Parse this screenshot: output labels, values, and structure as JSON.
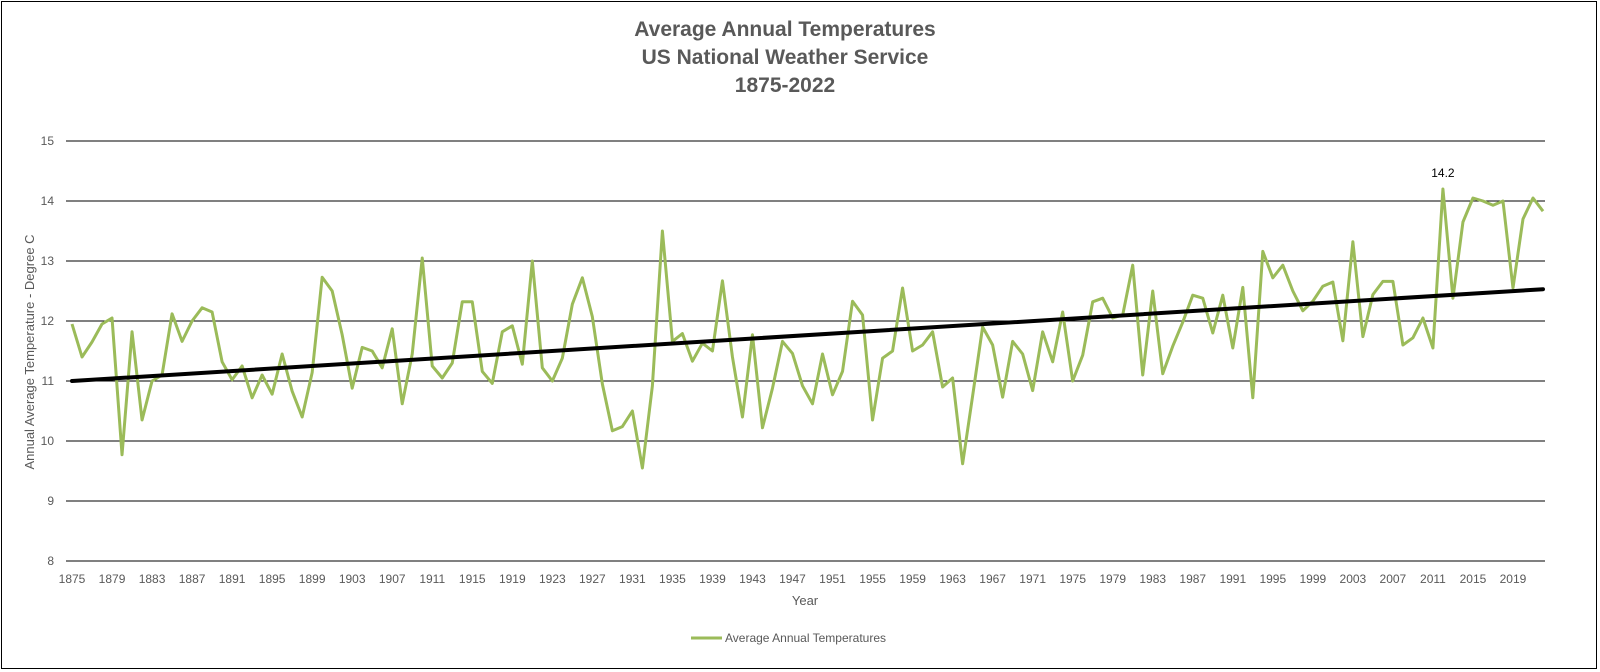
{
  "chart_data": {
    "type": "line",
    "title": [
      "Average Annual Temperatures",
      "US National Weather Service",
      "1875-2022"
    ],
    "xlabel": "Year",
    "ylabel": "Annual Average Temperature - Degree C",
    "ylim": [
      8,
      15
    ],
    "yticks": [
      8,
      9,
      10,
      11,
      12,
      13,
      14,
      15
    ],
    "xtick_labels": [
      "1875",
      "1879",
      "1883",
      "1887",
      "1891",
      "1895",
      "1899",
      "1903",
      "1907",
      "1911",
      "1915",
      "1919",
      "1923",
      "1927",
      "1931",
      "1935",
      "1939",
      "1943",
      "1947",
      "1951",
      "1955",
      "1959",
      "1963",
      "1967",
      "1971",
      "1975",
      "1979",
      "1983",
      "1987",
      "1991",
      "1995",
      "1999",
      "2003",
      "2007",
      "2011",
      "2015",
      "2019"
    ],
    "grid": "horizontal",
    "legend": "bottom",
    "colors": {
      "series": "#9BBB59",
      "trend": "#000000",
      "grid": "#000000",
      "text": "#595959"
    },
    "x_start": 1875,
    "series": [
      {
        "name": "Average Annual Temperatures",
        "values": [
          11.95,
          11.4,
          11.65,
          11.95,
          12.05,
          9.77,
          11.82,
          10.35,
          11.0,
          11.1,
          12.12,
          11.66,
          12.0,
          12.22,
          12.15,
          11.32,
          11.02,
          11.25,
          10.72,
          11.1,
          10.78,
          11.45,
          10.83,
          10.4,
          11.14,
          12.73,
          12.5,
          11.77,
          10.88,
          11.56,
          11.5,
          11.22,
          11.87,
          10.62,
          11.45,
          13.05,
          11.25,
          11.05,
          11.3,
          12.32,
          12.32,
          11.16,
          10.96,
          11.82,
          11.92,
          11.28,
          13.0,
          11.22,
          11.0,
          11.38,
          12.28,
          12.72,
          12.07,
          10.95,
          10.17,
          10.24,
          10.5,
          9.55,
          10.92,
          13.5,
          11.66,
          11.79,
          11.33,
          11.63,
          11.5,
          12.67,
          11.4,
          10.4,
          11.77,
          10.22,
          10.88,
          11.66,
          11.46,
          10.92,
          10.62,
          11.45,
          10.77,
          11.16,
          12.33,
          12.1,
          10.35,
          11.38,
          11.5,
          12.55,
          11.5,
          11.6,
          11.82,
          10.9,
          11.05,
          9.62,
          10.75,
          11.9,
          11.6,
          10.73,
          11.66,
          11.45,
          10.84,
          11.82,
          11.32,
          12.15,
          11.0,
          11.43,
          12.32,
          12.38,
          12.05,
          12.1,
          12.93,
          11.1,
          12.5,
          11.12,
          11.58,
          11.98,
          12.43,
          12.38,
          11.8,
          12.43,
          11.55,
          12.56,
          10.72,
          13.16,
          12.72,
          12.93,
          12.5,
          12.17,
          12.33,
          12.58,
          12.65,
          11.67,
          13.32,
          11.74,
          12.44,
          12.66,
          12.66,
          11.6,
          11.72,
          12.05,
          11.55,
          14.2,
          12.38,
          13.65,
          14.05,
          14.0,
          13.93,
          14.0,
          12.55,
          13.7,
          14.05,
          13.83
        ]
      }
    ],
    "trendline": {
      "start": 11.0,
      "end": 12.53
    },
    "annotation": {
      "text": "14.2",
      "year": 2012
    }
  }
}
